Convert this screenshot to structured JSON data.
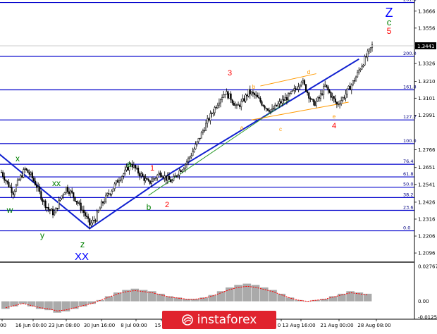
{
  "brand": {
    "name": "instaforex",
    "logo_icon": "instaforex-swirl-icon"
  },
  "colors": {
    "fib_line": "#0000cc",
    "trend_line": "#1020d0",
    "channel": "#ff9900",
    "thin_trend": "#2a9a2a",
    "candle": "#000000",
    "price_badge": "#000000",
    "osc_bar": "#aaaaaa",
    "osc_line": "#ff0000",
    "wave_red": "#ff0000",
    "wave_green": "#008000",
    "wave_blue": "#0000ff",
    "wave_orange": "#ff9900",
    "brand_bg": "#e0232e"
  },
  "chart_data": {
    "type": "candlestick",
    "title": "",
    "ylim": [
      1.2046,
      1.372
    ],
    "x_ticks": [
      "00",
      "16 Jun 00:00",
      "23 Jun 08:00",
      "30 Jun 16:00",
      "8 Jul 00:00",
      "15 J",
      "0",
      "13 Aug 16:00",
      "21 Aug 00:00",
      "28 Aug 08:00"
    ],
    "y_ticks": [
      "1.3666",
      "1.3556",
      "1.3326",
      "1.3210",
      "1.3101",
      "1.2991",
      "1.2766",
      "1.2651",
      "1.2541",
      "1.2426",
      "1.2316",
      "1.2206",
      "1.2096"
    ],
    "current_price": "1.3441",
    "fib_levels": [
      {
        "label": "261.8",
        "value": 1.3722
      },
      {
        "label": "200.0",
        "value": 1.3372
      },
      {
        "label": "161.8",
        "value": 1.3155
      },
      {
        "label": "127.2",
        "value": 1.296
      },
      {
        "label": "100.0",
        "value": 1.2806
      },
      {
        "label": "76.4",
        "value": 1.2672
      },
      {
        "label": "61.8",
        "value": 1.259
      },
      {
        "label": "50.0",
        "value": 1.2523
      },
      {
        "label": "38.2",
        "value": 1.2456
      },
      {
        "label": "23.6",
        "value": 1.2373
      },
      {
        "label": "0.0",
        "value": 1.224
      }
    ],
    "close_path": [
      [
        0,
        1.262
      ],
      [
        4,
        1.255
      ],
      [
        8,
        1.249
      ],
      [
        12,
        1.257
      ],
      [
        16,
        1.264
      ],
      [
        20,
        1.26
      ],
      [
        24,
        1.253
      ],
      [
        28,
        1.244
      ],
      [
        32,
        1.238
      ],
      [
        36,
        1.235
      ],
      [
        40,
        1.245
      ],
      [
        44,
        1.252
      ],
      [
        48,
        1.248
      ],
      [
        52,
        1.242
      ],
      [
        56,
        1.236
      ],
      [
        60,
        1.228
      ],
      [
        64,
        1.232
      ],
      [
        68,
        1.241
      ],
      [
        72,
        1.247
      ],
      [
        76,
        1.252
      ],
      [
        80,
        1.258
      ],
      [
        84,
        1.262
      ],
      [
        88,
        1.268
      ],
      [
        92,
        1.263
      ],
      [
        96,
        1.259
      ],
      [
        100,
        1.255
      ],
      [
        104,
        1.258
      ],
      [
        108,
        1.262
      ],
      [
        112,
        1.258
      ],
      [
        116,
        1.256
      ],
      [
        120,
        1.262
      ],
      [
        124,
        1.266
      ],
      [
        128,
        1.272
      ],
      [
        132,
        1.279
      ],
      [
        136,
        1.287
      ],
      [
        140,
        1.295
      ],
      [
        144,
        1.302
      ],
      [
        148,
        1.309
      ],
      [
        152,
        1.314
      ],
      [
        156,
        1.31
      ],
      [
        160,
        1.304
      ],
      [
        164,
        1.308
      ],
      [
        168,
        1.314
      ],
      [
        172,
        1.312
      ],
      [
        176,
        1.308
      ],
      [
        180,
        1.304
      ],
      [
        184,
        1.302
      ],
      [
        188,
        1.306
      ],
      [
        192,
        1.309
      ],
      [
        196,
        1.312
      ],
      [
        200,
        1.316
      ],
      [
        204,
        1.322
      ],
      [
        208,
        1.314
      ],
      [
        212,
        1.306
      ],
      [
        216,
        1.31
      ],
      [
        220,
        1.318
      ],
      [
        224,
        1.312
      ],
      [
        228,
        1.306
      ],
      [
        232,
        1.31
      ],
      [
        236,
        1.316
      ],
      [
        240,
        1.322
      ],
      [
        244,
        1.33
      ],
      [
        248,
        1.337
      ],
      [
        252,
        1.344
      ]
    ],
    "oscillator": {
      "ylim": [
        -0.0125,
        0.0277
      ],
      "y_ticks": [
        "0.02767",
        "0.00",
        "-0.01251"
      ],
      "values": [
        -0.006,
        -0.004,
        -0.002,
        -0.004,
        -0.006,
        -0.007,
        -0.009,
        -0.008,
        -0.006,
        -0.004,
        -0.002,
        0.001,
        0.004,
        0.007,
        0.009,
        0.01,
        0.009,
        0.008,
        0.006,
        0.004,
        0.003,
        0.002,
        0.002,
        0.003,
        0.005,
        0.008,
        0.011,
        0.013,
        0.014,
        0.013,
        0.011,
        0.009,
        0.006,
        0.003,
        0.001,
        0.0,
        0.001,
        0.002,
        0.004,
        0.006,
        0.008,
        0.007,
        0.006
      ]
    },
    "waves": [
      {
        "label": "x",
        "color": "green"
      },
      {
        "label": "w",
        "color": "green"
      },
      {
        "label": "y",
        "color": "green"
      },
      {
        "label": "xx",
        "color": "green"
      },
      {
        "label": "z",
        "color": "green"
      },
      {
        "label": "XX",
        "color": "blue"
      },
      {
        "label": "a",
        "color": "green"
      },
      {
        "label": "b",
        "color": "green"
      },
      {
        "label": "1",
        "color": "red"
      },
      {
        "label": "2",
        "color": "red"
      },
      {
        "label": "3",
        "color": "red"
      },
      {
        "label": "4",
        "color": "red"
      },
      {
        "label": "5",
        "color": "red"
      },
      {
        "label": "a",
        "color": "orange"
      },
      {
        "label": "b",
        "color": "orange"
      },
      {
        "label": "c",
        "color": "orange"
      },
      {
        "label": "d",
        "color": "orange"
      },
      {
        "label": "e",
        "color": "orange"
      },
      {
        "label": "c",
        "color": "green"
      },
      {
        "label": "Z",
        "color": "blue"
      }
    ]
  }
}
